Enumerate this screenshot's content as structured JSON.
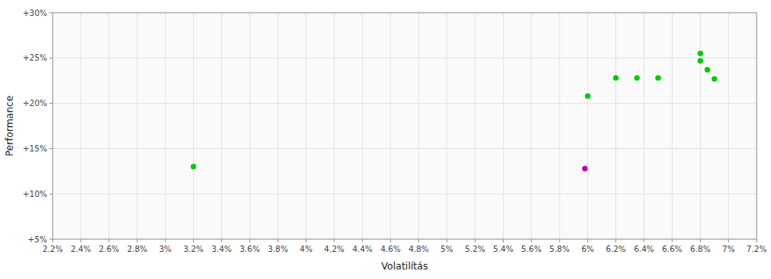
{
  "chart_data": {
    "type": "scatter",
    "x_label": "Volatilítás",
    "y_label": "Performance",
    "grid": true,
    "xlim": [
      0.022,
      0.072
    ],
    "ylim": [
      0.05,
      0.3
    ],
    "xticks": [
      {
        "value": 0.022,
        "label": "2.2%"
      },
      {
        "value": 0.024,
        "label": "2.4%"
      },
      {
        "value": 0.026,
        "label": "2.6%"
      },
      {
        "value": 0.028,
        "label": "2.8%"
      },
      {
        "value": 0.03,
        "label": "3%"
      },
      {
        "value": 0.032,
        "label": "3.2%"
      },
      {
        "value": 0.034,
        "label": "3.4%"
      },
      {
        "value": 0.036,
        "label": "3.6%"
      },
      {
        "value": 0.038,
        "label": "3.8%"
      },
      {
        "value": 0.04,
        "label": "4%"
      },
      {
        "value": 0.042,
        "label": "4.2%"
      },
      {
        "value": 0.044,
        "label": "4.4%"
      },
      {
        "value": 0.046,
        "label": "4.6%"
      },
      {
        "value": 0.048,
        "label": "4.8%"
      },
      {
        "value": 0.05,
        "label": "5%"
      },
      {
        "value": 0.052,
        "label": "5.2%"
      },
      {
        "value": 0.054,
        "label": "5.4%"
      },
      {
        "value": 0.056,
        "label": "5.6%"
      },
      {
        "value": 0.058,
        "label": "5.8%"
      },
      {
        "value": 0.06,
        "label": "6%"
      },
      {
        "value": 0.062,
        "label": "6.2%"
      },
      {
        "value": 0.064,
        "label": "6.4%"
      },
      {
        "value": 0.066,
        "label": "6.6%"
      },
      {
        "value": 0.068,
        "label": "6.8%"
      },
      {
        "value": 0.07,
        "label": "7%"
      },
      {
        "value": 0.072,
        "label": "7.2%"
      }
    ],
    "yticks": [
      {
        "value": 0.05,
        "label": "+5%"
      },
      {
        "value": 0.1,
        "label": "+10%"
      },
      {
        "value": 0.15,
        "label": "+15%"
      },
      {
        "value": 0.2,
        "label": "+20%"
      },
      {
        "value": 0.25,
        "label": "+25%"
      },
      {
        "value": 0.3,
        "label": "+30%"
      }
    ],
    "series": [
      {
        "color": "#00cc00",
        "x": [
          0.032,
          0.06,
          0.062,
          0.0635,
          0.065,
          0.068,
          0.068,
          0.0685,
          0.069
        ],
        "values": [
          0.13,
          0.208,
          0.228,
          0.228,
          0.228,
          0.255,
          0.247,
          0.237,
          0.227
        ]
      },
      {
        "color": "#bb00bb",
        "x": [
          0.0598
        ],
        "values": [
          0.128
        ]
      }
    ]
  }
}
